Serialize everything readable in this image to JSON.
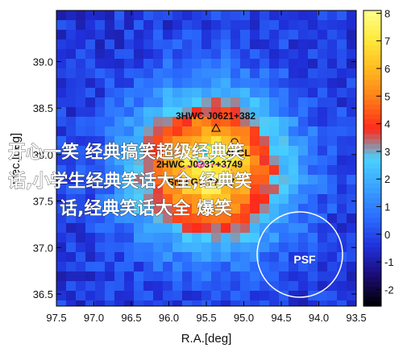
{
  "chart_data": {
    "type": "heatmap",
    "xlabel": "R.A.[deg]",
    "ylabel": "Dec.[deg]",
    "x_ticks": [
      "97.5",
      "97.0",
      "96.5",
      "96.0",
      "95.5",
      "95.0",
      "94.5",
      "94.0",
      "93.5"
    ],
    "y_ticks": [
      "36.5",
      "37.0",
      "37.5",
      "38.0",
      "38.5",
      "39.0"
    ],
    "xlim": [
      97.5,
      93.5
    ],
    "ylim": [
      36.37,
      39.55
    ],
    "colorbar": {
      "ticks": [
        "8",
        "7",
        "6",
        "5",
        "4",
        "3",
        "2",
        "1",
        "0",
        "-1",
        "-2"
      ],
      "range": [
        -2.6,
        8.1
      ],
      "colors": [
        "#000000",
        "#1a0a6e",
        "#1f2fd9",
        "#2b6cff",
        "#3aa0ff",
        "#49d2ff",
        "#ff2a1a",
        "#ff7a18",
        "#ffb81f",
        "#ffe83a",
        "#ffff8a"
      ]
    },
    "annotations": {
      "source_1": "3HWC J0621+382",
      "source_2": "4FGL",
      "source_3": "2HWC J0?3?+3749",
      "source_4": "SNR G?.?? .37",
      "psf_label": "PSF"
    },
    "peak": {
      "ra": 95.45,
      "dec": 37.85,
      "value": 7.8
    },
    "sigma_deg": [
      0.7,
      0.55
    ]
  },
  "overlay": {
    "line_1": "开心一笑 经典搞笑超级经典笑",
    "line_2": "话,小学生经典笑话大全,经典笑",
    "line_3": "话,经典笑话大全 爆笑"
  }
}
